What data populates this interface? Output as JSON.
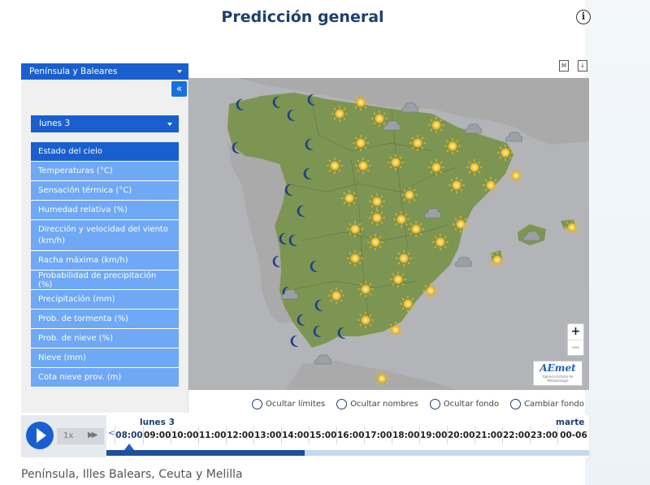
{
  "page": {
    "title": "Predicción general",
    "info_icon": "i",
    "footer": "Península, Illes Balears, Ceuta y Melilla"
  },
  "sidebar": {
    "region": "Península y Baleares",
    "collapse_icon": "«",
    "day": "lunes 3",
    "items": [
      {
        "label": "Estado del cielo",
        "active": true
      },
      {
        "label": "Temperaturas (°C)"
      },
      {
        "label": "Sensación térmica (°C)"
      },
      {
        "label": "Humedad relativa (%)"
      },
      {
        "label": "Dirección y velocidad del viento (km/h)"
      },
      {
        "label": "Racha máxima (km/h)"
      },
      {
        "label": "Probabilidad de precipitación (%)"
      },
      {
        "label": "Precipitación (mm)"
      },
      {
        "label": "Prob. de tormenta (%)"
      },
      {
        "label": "Prob. de nieve (%)"
      },
      {
        "label": "Nieve (mm)"
      },
      {
        "label": "Cota nieve prov. (m)"
      }
    ]
  },
  "toolbar": {
    "map_icon_letter": "M",
    "download_icon_glyph": "↓"
  },
  "map": {
    "zoom_in": "+",
    "zoom_out": "−",
    "logo_name": "AEmet",
    "logo_subtitle": "Agencia Estatal de Meteorología"
  },
  "options": [
    {
      "label": "Ocultar límites",
      "checked": false
    },
    {
      "label": "Ocultar nombres",
      "checked": false
    },
    {
      "label": "Ocultar fondo",
      "checked": false
    },
    {
      "label": "Cambiar fondo",
      "checked": false
    }
  ],
  "player": {
    "speed": "1x",
    "prev_arrow": "<",
    "day": "lunes 3",
    "next_day": "marte",
    "hours": [
      "08:00",
      "09:00",
      "10:00",
      "11:00",
      "12:00",
      "13:00",
      "14:00",
      "15:00",
      "16:00",
      "17:00",
      "18:00",
      "19:00",
      "20:00",
      "21:00",
      "22:00",
      "23:00"
    ],
    "next_hour": "00-06",
    "current_hour_index": 0,
    "progress_fraction": 0.41
  },
  "colors": {
    "brand_blue": "#1a5fd0",
    "menu_blue": "#6fa8f5",
    "title_navy": "#1f3f6e",
    "land_green": "#7d9552",
    "sea_gray": "#b2b4b7",
    "sun_yellow": "#f5c842"
  }
}
